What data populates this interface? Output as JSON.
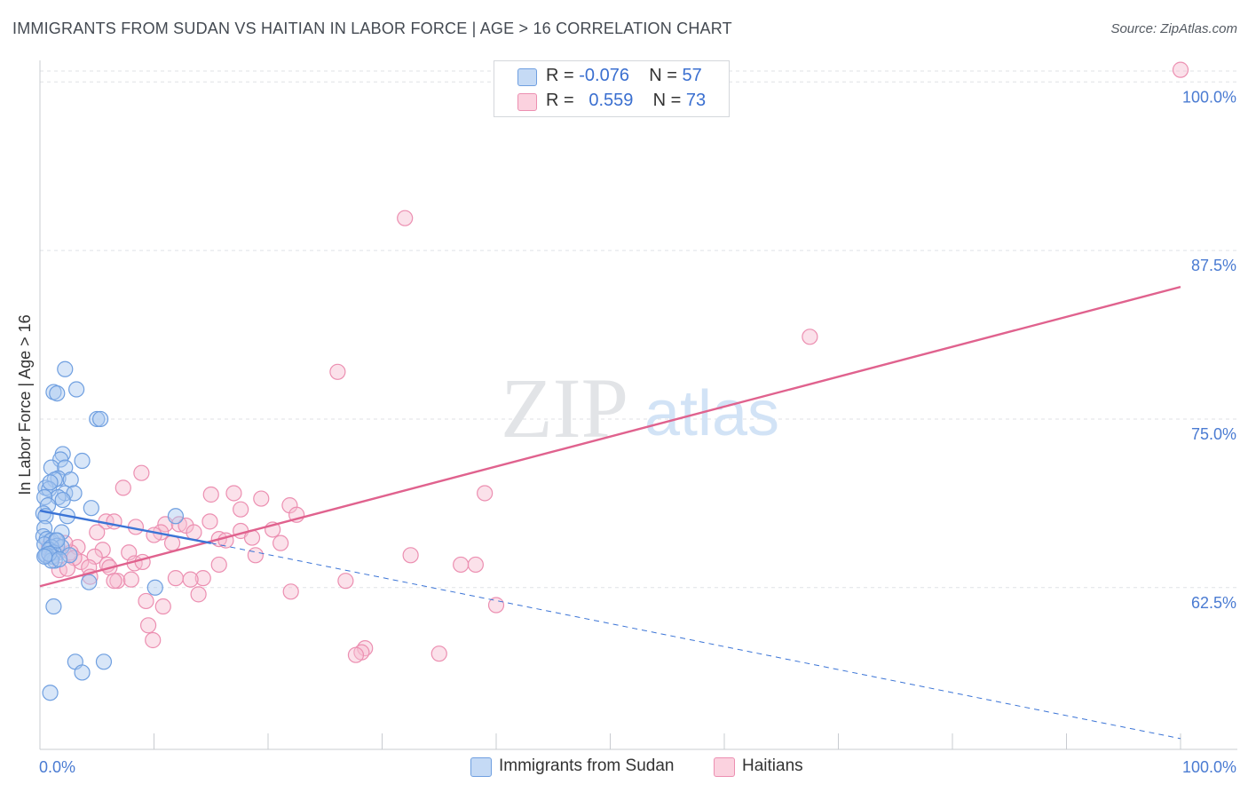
{
  "title": "IMMIGRANTS FROM SUDAN VS HAITIAN IN LABOR FORCE | AGE > 16 CORRELATION CHART",
  "source": "Source: ZipAtlas.com",
  "colors": {
    "sudan_fill": "#a9c8f0",
    "sudan_stroke": "#6f9fe0",
    "sudan_line": "#3b74d6",
    "haiti_fill": "#f7bcd0",
    "haiti_stroke": "#ec8fb1",
    "haiti_line": "#e0628e",
    "axis_text": "#4a7bd2",
    "grid": "#dfe2e6"
  },
  "legend": {
    "r_label": "R =",
    "n_label": "N =",
    "sudan_r": "-0.076",
    "sudan_n": "57",
    "haiti_r": "0.559",
    "haiti_n": "73"
  },
  "chart_data": {
    "type": "scatter",
    "title": "IMMIGRANTS FROM SUDAN VS HAITIAN IN LABOR FORCE | AGE > 16 CORRELATION CHART",
    "xlabel": "",
    "ylabel": "In Labor Force | Age > 16",
    "xlim": [
      0,
      100
    ],
    "ylim": [
      50.5,
      101.6
    ],
    "x_tick_labels": [
      "0.0%",
      "100.0%"
    ],
    "y_ticks": [
      62.5,
      75.0,
      87.5,
      100.0
    ],
    "y_tick_labels": [
      "62.5%",
      "75.0%",
      "87.5%",
      "100.0%"
    ],
    "grid": true,
    "legend_position": "top-center",
    "watermark": {
      "zip": "ZIP",
      "atlas": "atlas"
    },
    "series": [
      {
        "name": "Immigrants from Sudan",
        "r": -0.076,
        "n": 57,
        "trend": {
          "x0": 0,
          "y0": 68.2,
          "x1": 15,
          "y1": 65.8,
          "dash_to_x": 100,
          "dash_to_y": 51.3
        },
        "points": [
          [
            2.2,
            78.7
          ],
          [
            1.2,
            77.0
          ],
          [
            3.2,
            77.2
          ],
          [
            1.5,
            76.9
          ],
          [
            5.0,
            75.0
          ],
          [
            5.3,
            75.0
          ],
          [
            2.0,
            72.4
          ],
          [
            1.8,
            72.0
          ],
          [
            3.7,
            71.9
          ],
          [
            1.0,
            71.4
          ],
          [
            2.2,
            71.4
          ],
          [
            1.6,
            70.6
          ],
          [
            1.3,
            70.5
          ],
          [
            2.7,
            70.5
          ],
          [
            0.5,
            69.9
          ],
          [
            0.8,
            69.8
          ],
          [
            2.2,
            69.5
          ],
          [
            3.0,
            69.5
          ],
          [
            1.6,
            69.2
          ],
          [
            0.4,
            69.2
          ],
          [
            2.0,
            69.0
          ],
          [
            0.7,
            68.6
          ],
          [
            4.5,
            68.4
          ],
          [
            0.3,
            68.0
          ],
          [
            0.5,
            67.8
          ],
          [
            2.4,
            67.8
          ],
          [
            11.9,
            67.8
          ],
          [
            0.4,
            66.9
          ],
          [
            1.9,
            66.6
          ],
          [
            0.3,
            66.3
          ],
          [
            0.6,
            66.1
          ],
          [
            1.0,
            66.0
          ],
          [
            1.4,
            66.0
          ],
          [
            0.4,
            65.7
          ],
          [
            1.5,
            65.6
          ],
          [
            1.9,
            65.5
          ],
          [
            1.0,
            65.5
          ],
          [
            0.8,
            65.3
          ],
          [
            1.2,
            65.1
          ],
          [
            0.6,
            64.9
          ],
          [
            1.1,
            64.8
          ],
          [
            2.6,
            64.9
          ],
          [
            1.3,
            64.5
          ],
          [
            0.5,
            64.9
          ],
          [
            1.0,
            64.5
          ],
          [
            4.3,
            62.9
          ],
          [
            10.1,
            62.5
          ],
          [
            1.2,
            61.1
          ],
          [
            3.1,
            57.0
          ],
          [
            5.6,
            57.0
          ],
          [
            3.7,
            56.2
          ],
          [
            0.9,
            54.7
          ],
          [
            1.5,
            66.0
          ],
          [
            0.8,
            65.0
          ],
          [
            0.4,
            64.8
          ],
          [
            1.7,
            64.6
          ],
          [
            0.9,
            70.3
          ]
        ]
      },
      {
        "name": "Haitians",
        "r": 0.559,
        "n": 73,
        "trend": {
          "x0": 0,
          "y0": 62.6,
          "x1": 100,
          "y1": 84.8
        },
        "points": [
          [
            100.0,
            100.9
          ],
          [
            32.0,
            89.9
          ],
          [
            67.5,
            81.1
          ],
          [
            26.1,
            78.5
          ],
          [
            8.9,
            71.0
          ],
          [
            7.3,
            69.9
          ],
          [
            15.0,
            69.4
          ],
          [
            17.0,
            69.5
          ],
          [
            39.0,
            69.5
          ],
          [
            19.4,
            69.1
          ],
          [
            21.9,
            68.6
          ],
          [
            17.6,
            68.3
          ],
          [
            22.5,
            67.9
          ],
          [
            5.8,
            67.4
          ],
          [
            6.5,
            67.4
          ],
          [
            14.9,
            67.4
          ],
          [
            11.0,
            67.2
          ],
          [
            12.2,
            67.2
          ],
          [
            12.8,
            67.1
          ],
          [
            8.4,
            67.0
          ],
          [
            17.6,
            66.7
          ],
          [
            10.6,
            66.6
          ],
          [
            13.5,
            66.6
          ],
          [
            18.6,
            66.2
          ],
          [
            15.7,
            66.1
          ],
          [
            16.3,
            66.0
          ],
          [
            11.6,
            65.8
          ],
          [
            21.1,
            65.8
          ],
          [
            3.3,
            65.5
          ],
          [
            5.5,
            65.3
          ],
          [
            7.8,
            65.1
          ],
          [
            1.6,
            65.1
          ],
          [
            2.7,
            65.1
          ],
          [
            4.8,
            64.8
          ],
          [
            18.9,
            64.9
          ],
          [
            32.5,
            64.9
          ],
          [
            3.6,
            64.4
          ],
          [
            5.9,
            64.2
          ],
          [
            36.9,
            64.2
          ],
          [
            38.2,
            64.2
          ],
          [
            8.3,
            64.3
          ],
          [
            15.7,
            64.2
          ],
          [
            4.3,
            64.0
          ],
          [
            6.1,
            64.0
          ],
          [
            1.7,
            63.8
          ],
          [
            6.8,
            63.0
          ],
          [
            8.0,
            63.1
          ],
          [
            11.9,
            63.2
          ],
          [
            14.3,
            63.2
          ],
          [
            26.8,
            63.0
          ],
          [
            22.0,
            62.2
          ],
          [
            13.9,
            62.0
          ],
          [
            9.3,
            61.5
          ],
          [
            10.8,
            61.1
          ],
          [
            40.0,
            61.2
          ],
          [
            9.5,
            59.7
          ],
          [
            9.9,
            58.6
          ],
          [
            28.5,
            58.0
          ],
          [
            28.2,
            57.7
          ],
          [
            27.7,
            57.5
          ],
          [
            35.0,
            57.6
          ],
          [
            1.0,
            64.8
          ],
          [
            0.8,
            65.6
          ],
          [
            2.2,
            65.8
          ],
          [
            3.0,
            64.7
          ],
          [
            4.4,
            63.3
          ],
          [
            9.0,
            64.4
          ],
          [
            20.4,
            66.8
          ],
          [
            13.2,
            63.1
          ],
          [
            2.4,
            63.9
          ],
          [
            6.5,
            63.0
          ],
          [
            5.0,
            66.6
          ],
          [
            10.0,
            66.4
          ]
        ]
      }
    ]
  }
}
